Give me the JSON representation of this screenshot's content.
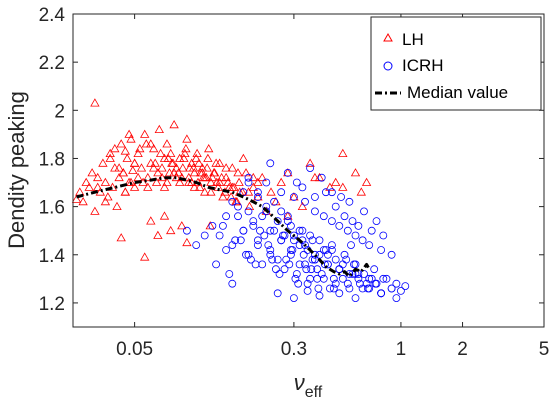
{
  "chart_data": {
    "type": "scatter",
    "title": "",
    "xlabel": {
      "main": "ν",
      "sub": "eff"
    },
    "ylabel": "Dendity peaking",
    "xscale": "log",
    "xlim": [
      0.025,
      5
    ],
    "ylim": [
      1.1,
      2.4
    ],
    "x_ticks": [
      {
        "value": 0.05,
        "label": "0.05"
      },
      {
        "value": 0.3,
        "label": "0.3"
      },
      {
        "value": 1,
        "label": "1"
      },
      {
        "value": 2,
        "label": "2"
      },
      {
        "value": 5,
        "label": "5"
      }
    ],
    "y_ticks": [
      {
        "value": 1.2,
        "label": "1.2"
      },
      {
        "value": 1.4,
        "label": "1.4"
      },
      {
        "value": 1.6,
        "label": "1.6"
      },
      {
        "value": 1.8,
        "label": "1.8"
      },
      {
        "value": 2,
        "label": "2"
      },
      {
        "value": 2.2,
        "label": "2.2"
      },
      {
        "value": 2.4,
        "label": "2.4"
      }
    ],
    "grid": false,
    "legend_position": "top-right",
    "series": [
      {
        "name": "LH",
        "marker": "triangle",
        "color": "#ff0000",
        "x": [
          0.026,
          0.027,
          0.028,
          0.029,
          0.03,
          0.031,
          0.032,
          0.033,
          0.034,
          0.035,
          0.036,
          0.037,
          0.038,
          0.039,
          0.04,
          0.041,
          0.042,
          0.043,
          0.044,
          0.045,
          0.046,
          0.047,
          0.048,
          0.049,
          0.05,
          0.052,
          0.054,
          0.056,
          0.058,
          0.06,
          0.062,
          0.064,
          0.066,
          0.068,
          0.07,
          0.072,
          0.074,
          0.076,
          0.078,
          0.08,
          0.083,
          0.086,
          0.089,
          0.092,
          0.095,
          0.098,
          0.101,
          0.104,
          0.107,
          0.11,
          0.114,
          0.118,
          0.122,
          0.126,
          0.13,
          0.135,
          0.14,
          0.145,
          0.15,
          0.156,
          0.162,
          0.168,
          0.175,
          0.182,
          0.19,
          0.2,
          0.21,
          0.22,
          0.232,
          0.245,
          0.26,
          0.28,
          0.3,
          0.33,
          0.36,
          0.4,
          0.45,
          0.52,
          0.6,
          0.68,
          0.04,
          0.045,
          0.05,
          0.055,
          0.06,
          0.065,
          0.07,
          0.075,
          0.08,
          0.085,
          0.09,
          0.095,
          0.1,
          0.105,
          0.11,
          0.115,
          0.12,
          0.125,
          0.13,
          0.14,
          0.15,
          0.16,
          0.17,
          0.18,
          0.19,
          0.2,
          0.036,
          0.042,
          0.048,
          0.053,
          0.058,
          0.063,
          0.068,
          0.073,
          0.078,
          0.083,
          0.088,
          0.093,
          0.098,
          0.103,
          0.108,
          0.113,
          0.118,
          0.123,
          0.128,
          0.133,
          0.138,
          0.143,
          0.148,
          0.153,
          0.158,
          0.163,
          0.033,
          0.038,
          0.044,
          0.047,
          0.052,
          0.057,
          0.062,
          0.067,
          0.072,
          0.077,
          0.082,
          0.087,
          0.092,
          0.097,
          0.102,
          0.107,
          0.112,
          0.117,
          0.06,
          0.065,
          0.07,
          0.075,
          0.085,
          0.09,
          0.056,
          0.043,
          0.032,
          0.045,
          0.05,
          0.28,
          0.38,
          0.48,
          0.52,
          0.64
        ],
        "y": [
          1.63,
          1.66,
          1.62,
          1.7,
          1.68,
          1.74,
          1.58,
          1.72,
          1.66,
          1.78,
          1.7,
          1.64,
          1.82,
          1.68,
          1.76,
          1.6,
          1.72,
          1.86,
          1.74,
          1.66,
          1.8,
          1.7,
          1.88,
          1.75,
          1.68,
          1.82,
          1.76,
          1.9,
          1.72,
          1.78,
          1.84,
          1.7,
          1.92,
          1.76,
          1.8,
          1.86,
          1.74,
          1.78,
          1.94,
          1.72,
          1.8,
          1.76,
          1.84,
          1.7,
          1.78,
          1.74,
          1.82,
          1.68,
          1.76,
          1.72,
          1.8,
          1.66,
          1.74,
          1.7,
          1.78,
          1.64,
          1.72,
          1.68,
          1.76,
          1.62,
          1.7,
          1.66,
          1.74,
          1.6,
          1.68,
          1.64,
          1.72,
          1.58,
          1.66,
          1.62,
          1.7,
          1.56,
          1.64,
          1.6,
          1.78,
          1.72,
          1.68,
          1.82,
          1.74,
          1.7,
          1.84,
          1.66,
          1.78,
          1.7,
          1.86,
          1.74,
          1.68,
          1.82,
          1.76,
          1.72,
          1.88,
          1.7,
          1.8,
          1.74,
          1.66,
          1.84,
          1.72,
          1.78,
          1.7,
          1.76,
          1.68,
          1.74,
          1.8,
          1.66,
          1.72,
          1.7,
          1.62,
          1.76,
          1.7,
          1.84,
          1.68,
          1.78,
          1.72,
          1.8,
          1.74,
          1.7,
          1.82,
          1.76,
          1.68,
          1.78,
          1.72,
          1.76,
          1.7,
          1.74,
          1.68,
          1.72,
          1.66,
          1.7,
          1.64,
          1.68,
          1.62,
          1.66,
          1.68,
          1.8,
          1.74,
          1.9,
          1.72,
          1.86,
          1.76,
          1.82,
          1.7,
          1.78,
          1.74,
          1.8,
          1.72,
          1.76,
          1.7,
          1.74,
          1.72,
          1.52,
          1.54,
          1.48,
          1.56,
          1.5,
          1.52,
          1.45,
          1.39,
          1.47,
          2.03,
          1.83,
          1.78,
          1.74,
          1.72,
          1.7,
          1.68,
          1.66
        ]
      },
      {
        "name": "ICRH",
        "marker": "circle",
        "color": "#0000ff",
        "x": [
          0.12,
          0.13,
          0.14,
          0.15,
          0.16,
          0.17,
          0.18,
          0.19,
          0.2,
          0.21,
          0.22,
          0.23,
          0.24,
          0.25,
          0.26,
          0.27,
          0.28,
          0.29,
          0.3,
          0.31,
          0.32,
          0.33,
          0.34,
          0.35,
          0.36,
          0.37,
          0.38,
          0.39,
          0.4,
          0.42,
          0.44,
          0.46,
          0.48,
          0.5,
          0.52,
          0.54,
          0.56,
          0.58,
          0.6,
          0.63,
          0.66,
          0.69,
          0.72,
          0.76,
          0.8,
          0.85,
          0.9,
          0.95,
          1.0,
          1.05,
          0.15,
          0.16,
          0.17,
          0.18,
          0.19,
          0.2,
          0.21,
          0.22,
          0.23,
          0.24,
          0.25,
          0.26,
          0.27,
          0.28,
          0.29,
          0.3,
          0.32,
          0.34,
          0.36,
          0.38,
          0.4,
          0.42,
          0.44,
          0.46,
          0.48,
          0.5,
          0.53,
          0.56,
          0.59,
          0.62,
          0.14,
          0.155,
          0.17,
          0.185,
          0.2,
          0.215,
          0.23,
          0.245,
          0.26,
          0.275,
          0.29,
          0.305,
          0.32,
          0.335,
          0.35,
          0.365,
          0.38,
          0.395,
          0.41,
          0.425,
          0.44,
          0.47,
          0.5,
          0.55,
          0.6,
          0.65,
          0.7,
          0.75,
          0.8,
          0.9,
          0.09,
          0.1,
          0.11,
          0.125,
          0.135,
          0.145,
          0.165,
          0.175,
          0.195,
          0.205,
          0.225,
          0.235,
          0.255,
          0.265,
          0.285,
          0.295,
          0.315,
          0.33,
          0.345,
          0.37,
          0.39,
          0.43,
          0.47,
          0.52,
          0.57,
          0.62,
          0.68,
          0.74,
          0.82,
          0.95,
          0.18,
          0.22,
          0.26,
          0.3,
          0.34,
          0.38,
          0.42,
          0.46,
          0.5,
          0.55,
          0.6,
          0.65,
          0.7,
          0.8,
          0.9,
          0.25,
          0.3,
          0.35,
          0.4,
          0.45,
          0.5,
          0.6,
          0.7,
          0.8,
          0.33,
          0.38,
          0.43,
          0.48,
          0.53,
          0.58,
          0.62,
          0.72,
          0.82,
          0.23,
          0.28,
          0.31,
          0.36,
          0.41,
          0.46,
          0.51,
          0.56,
          0.66,
          0.76,
          0.18,
          0.2,
          0.15
        ],
        "y": [
          1.52,
          1.48,
          1.56,
          1.44,
          1.6,
          1.5,
          1.4,
          1.54,
          1.46,
          1.36,
          1.58,
          1.42,
          1.5,
          1.38,
          1.46,
          1.34,
          1.54,
          1.4,
          1.48,
          1.32,
          1.44,
          1.5,
          1.36,
          1.42,
          1.3,
          1.46,
          1.38,
          1.34,
          1.4,
          1.3,
          1.36,
          1.42,
          1.28,
          1.34,
          1.3,
          1.38,
          1.26,
          1.32,
          1.36,
          1.28,
          1.32,
          1.26,
          1.3,
          1.28,
          1.24,
          1.3,
          1.26,
          1.28,
          1.25,
          1.27,
          1.62,
          1.56,
          1.66,
          1.58,
          1.52,
          1.64,
          1.56,
          1.6,
          1.5,
          1.62,
          1.54,
          1.58,
          1.48,
          1.56,
          1.52,
          1.46,
          1.5,
          1.44,
          1.48,
          1.4,
          1.46,
          1.42,
          1.36,
          1.44,
          1.38,
          1.34,
          1.4,
          1.32,
          1.36,
          1.3,
          1.42,
          1.46,
          1.5,
          1.38,
          1.44,
          1.48,
          1.4,
          1.34,
          1.46,
          1.38,
          1.42,
          1.3,
          1.36,
          1.4,
          1.28,
          1.34,
          1.38,
          1.26,
          1.32,
          1.36,
          1.4,
          1.3,
          1.34,
          1.28,
          1.32,
          1.26,
          1.3,
          1.28,
          1.24,
          1.26,
          1.5,
          1.44,
          1.48,
          1.36,
          1.52,
          1.32,
          1.46,
          1.4,
          1.36,
          1.5,
          1.44,
          1.38,
          1.32,
          1.48,
          1.36,
          1.42,
          1.28,
          1.46,
          1.34,
          1.38,
          1.3,
          1.42,
          1.26,
          1.36,
          1.44,
          1.32,
          1.28,
          1.34,
          1.3,
          1.22,
          1.72,
          1.7,
          1.66,
          1.64,
          1.62,
          1.58,
          1.56,
          1.54,
          1.52,
          1.5,
          1.48,
          1.46,
          1.44,
          1.42,
          1.4,
          1.24,
          1.22,
          1.25,
          1.23,
          1.26,
          1.24,
          1.22,
          1.26,
          1.24,
          1.68,
          1.64,
          1.66,
          1.6,
          1.56,
          1.54,
          1.52,
          1.5,
          1.48,
          1.78,
          1.74,
          1.7,
          1.76,
          1.72,
          1.66,
          1.64,
          1.62,
          1.58,
          1.54,
          1.7,
          1.66,
          1.28
        ]
      },
      {
        "name": "Median value",
        "type": "line",
        "style": "dash-dot",
        "color": "#000000",
        "x": [
          0.026,
          0.032,
          0.04,
          0.05,
          0.06,
          0.07,
          0.08,
          0.09,
          0.1,
          0.115,
          0.13,
          0.15,
          0.17,
          0.19,
          0.21,
          0.23,
          0.25,
          0.28,
          0.31,
          0.34,
          0.37,
          0.4,
          0.43,
          0.47,
          0.5,
          0.53,
          0.56,
          0.6,
          0.64,
          0.68,
          0.7
        ],
        "y": [
          1.64,
          1.66,
          1.68,
          1.7,
          1.71,
          1.72,
          1.72,
          1.71,
          1.7,
          1.68,
          1.67,
          1.66,
          1.64,
          1.62,
          1.6,
          1.57,
          1.54,
          1.5,
          1.47,
          1.44,
          1.41,
          1.38,
          1.35,
          1.33,
          1.32,
          1.33,
          1.31,
          1.34,
          1.33,
          1.36,
          1.34
        ]
      }
    ]
  }
}
